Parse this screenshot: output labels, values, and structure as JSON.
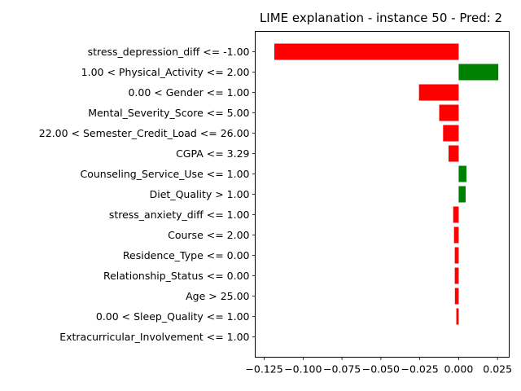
{
  "chart_data": {
    "type": "bar",
    "orientation": "horizontal",
    "title": "LIME explanation - instance 50 - Pred: 2",
    "xlabel": "",
    "ylabel": "",
    "xlim": [
      -0.1308,
      0.0325
    ],
    "xticks": [
      -0.125,
      -0.1,
      -0.075,
      -0.05,
      -0.025,
      0.0,
      0.025
    ],
    "xtick_labels": [
      "−0.125",
      "−0.100",
      "−0.075",
      "−0.050",
      "−0.025",
      "0.000",
      "0.025"
    ],
    "positive_color": "#008000",
    "negative_color": "#ff0000",
    "categories": [
      "stress_depression_diff <= -1.00",
      "1.00 < Physical_Activity <= 2.00",
      "0.00 < Gender <= 1.00",
      "Mental_Severity_Score <= 5.00",
      "22.00 < Semester_Credit_Load <= 26.00",
      "CGPA <= 3.29",
      "Counseling_Service_Use <= 1.00",
      "Diet_Quality > 1.00",
      "stress_anxiety_diff <= 1.00",
      "Course <= 2.00",
      "Residence_Type <= 0.00",
      "Relationship_Status <= 0.00",
      "Age > 25.00",
      "0.00 < Sleep_Quality <= 1.00",
      "Extracurricular_Involvement <= 1.00"
    ],
    "values": [
      -0.1185,
      0.0255,
      -0.0255,
      -0.0125,
      -0.01,
      -0.0065,
      0.005,
      0.0045,
      -0.0035,
      -0.003,
      -0.0025,
      -0.0025,
      -0.0024,
      -0.0015,
      0.0
    ]
  }
}
